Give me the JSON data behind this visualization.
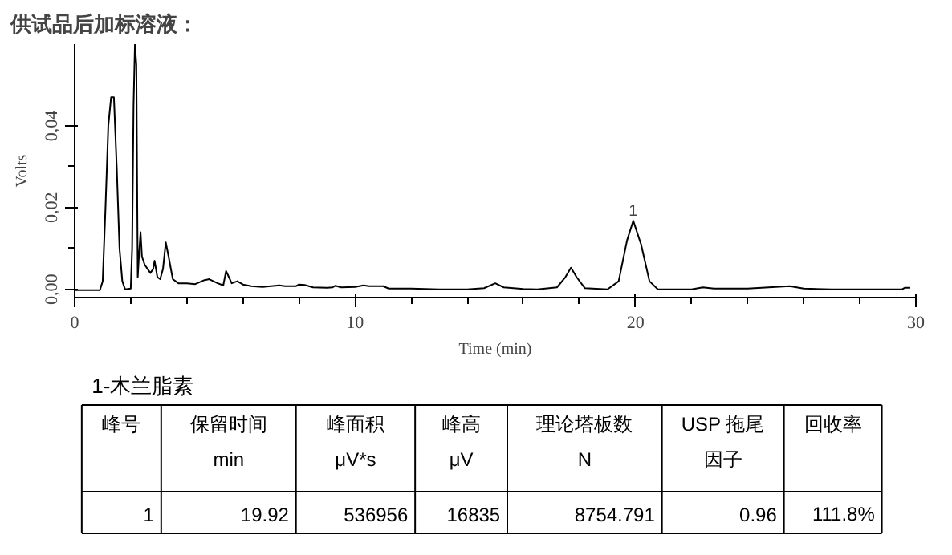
{
  "chart_data": {
    "type": "line",
    "title": "供试品后加标溶液：",
    "xlabel": "Time (min)",
    "ylabel": "Volts",
    "x": [
      0,
      0.9,
      1.0,
      1.1,
      1.2,
      1.3,
      1.4,
      1.5,
      1.6,
      1.7,
      1.8,
      2.0,
      2.05,
      2.1,
      2.15,
      2.2,
      2.25,
      2.3,
      2.35,
      2.4,
      2.5,
      2.7,
      2.8,
      2.85,
      2.95,
      3.05,
      3.15,
      3.25,
      3.35,
      3.5,
      3.7,
      4.0,
      4.3,
      4.6,
      4.8,
      5.1,
      5.3,
      5.4,
      5.5,
      5.6,
      5.8,
      6.0,
      6.3,
      6.7,
      7.0,
      7.3,
      7.5,
      7.9,
      8.0,
      8.2,
      8.5,
      9.0,
      9.2,
      9.3,
      9.5,
      10.0,
      10.3,
      10.5,
      11.0,
      11.2,
      12.0,
      13.0,
      14.0,
      14.6,
      15.0,
      15.3,
      16.0,
      16.5,
      17.2,
      17.5,
      17.7,
      17.9,
      18.2,
      19.0,
      19.4,
      19.7,
      19.92,
      20.2,
      20.5,
      20.8,
      22.0,
      22.4,
      22.8,
      24.0,
      25.5,
      26.0,
      27.0,
      29.5,
      29.6,
      29.8
    ],
    "series": [
      {
        "color": "#000000",
        "values": [
          -0.0002,
          -0.0002,
          0.002,
          0.02,
          0.04,
          0.047,
          0.047,
          0.03,
          0.01,
          0.002,
          0.0,
          0.0002,
          0.01,
          0.045,
          0.06,
          0.055,
          0.003,
          0.009,
          0.014,
          0.008,
          0.006,
          0.004,
          0.005,
          0.007,
          0.003,
          0.0025,
          0.005,
          0.0115,
          0.008,
          0.0025,
          0.0015,
          0.0015,
          0.0013,
          0.0022,
          0.0025,
          0.0015,
          0.001,
          0.0045,
          0.003,
          0.0015,
          0.002,
          0.0012,
          0.0008,
          0.0006,
          0.0008,
          0.001,
          0.0008,
          0.0008,
          0.0012,
          0.0011,
          0.0005,
          0.0004,
          0.0005,
          0.0009,
          0.0005,
          0.0006,
          0.001,
          0.0008,
          0.0008,
          0.0002,
          0.0002,
          0.0,
          0.0,
          0.0003,
          0.0015,
          0.0005,
          0.0001,
          0.0,
          0.0005,
          0.003,
          0.0053,
          0.003,
          0.0003,
          0.0,
          0.002,
          0.012,
          0.0168,
          0.011,
          0.002,
          0.0,
          0.0,
          0.0005,
          0.0002,
          0.0002,
          0.0008,
          0.0002,
          0.0,
          0.0,
          0.0004,
          0.0004
        ]
      }
    ],
    "xlim": [
      0,
      30
    ],
    "xticks": [
      0,
      10,
      20,
      30
    ],
    "ylim": [
      -0.002,
      0.06
    ],
    "yticks": [
      {
        "value": 0,
        "label": "0,00"
      },
      {
        "value": 0.02,
        "label": "0,02"
      },
      {
        "value": 0.04,
        "label": "0,04"
      }
    ],
    "grid": false,
    "marker": "none",
    "line_style": "solid",
    "annotations": [
      {
        "text": "1",
        "x": 19.92,
        "y": 0.0168
      },
      "1-木兰脂素",
      "峰号",
      "保留时间\nmin",
      "峰面积\nμV*s",
      "峰高\nμV",
      "理论塔板数\nN",
      "USP 拖尾因子",
      "回收率",
      "1",
      "19.92",
      "536956",
      "16835",
      "8754.791",
      "0.96",
      "111.8%"
    ]
  }
}
